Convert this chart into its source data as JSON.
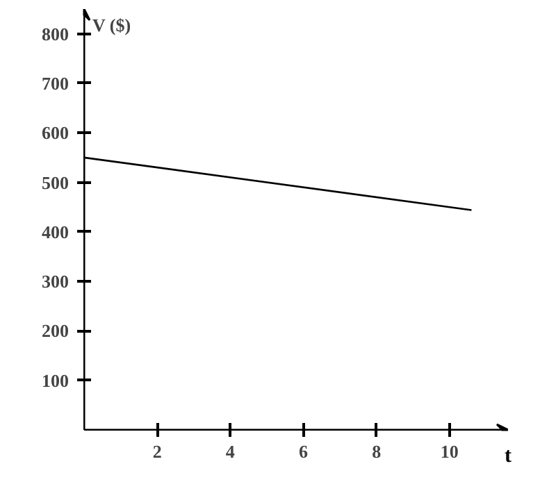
{
  "chart_data": {
    "type": "line",
    "xlabel": "t",
    "ylabel": "V ($)",
    "x": [
      0,
      10.6
    ],
    "series": [
      {
        "color": "#000000",
        "values": [
          550,
          444
        ]
      }
    ],
    "xlim": [
      0,
      11.6
    ],
    "ylim": [
      0,
      850
    ],
    "xticks": [
      2,
      4,
      6,
      8,
      10
    ],
    "yticks": [
      100,
      200,
      300,
      400,
      500,
      600,
      700,
      800
    ],
    "grid": false,
    "marker": "none",
    "line_style": "solid"
  }
}
